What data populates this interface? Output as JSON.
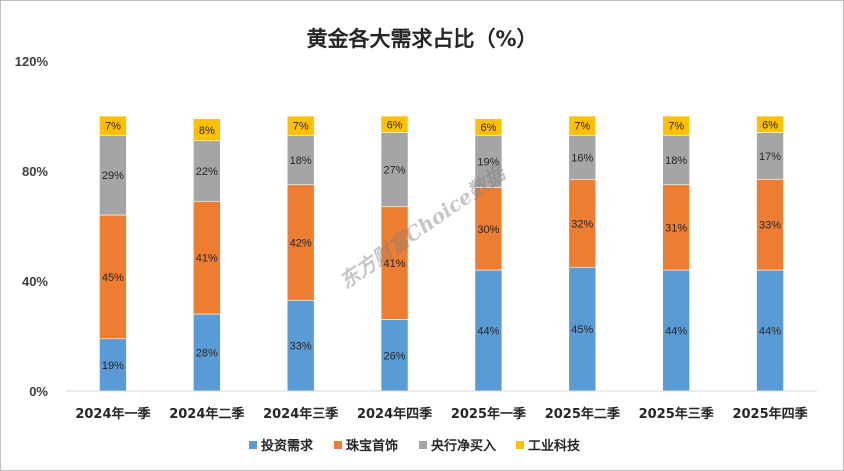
{
  "chart_data": {
    "type": "bar",
    "stacked": true,
    "title": "黄金各大需求占比（%）",
    "xlabel": "",
    "ylabel": "",
    "ylim": [
      0,
      120
    ],
    "yticks": [
      {
        "value": 0,
        "label": "0%"
      },
      {
        "value": 40,
        "label": "40%"
      },
      {
        "value": 80,
        "label": "80%"
      },
      {
        "value": 120,
        "label": "120%"
      }
    ],
    "grid": false,
    "legend_position": "bottom",
    "categories": [
      "2024年一季",
      "2024年二季",
      "2024年三季",
      "2024年四季",
      "2025年一季",
      "2025年二季",
      "2025年三季",
      "2025年四季"
    ],
    "series": [
      {
        "name": "投资需求",
        "color": "#5b9bd5",
        "values": [
          19,
          28,
          33,
          26,
          44,
          45,
          44,
          44
        ],
        "labels": [
          "19%",
          "28%",
          "33%",
          "26%",
          "44%",
          "45%",
          "44%",
          "44%"
        ]
      },
      {
        "name": "珠宝首饰",
        "color": "#ed7d31",
        "values": [
          45,
          41,
          42,
          41,
          30,
          32,
          31,
          33
        ],
        "labels": [
          "45%",
          "41%",
          "42%",
          "41%",
          "30%",
          "32%",
          "31%",
          "33%"
        ]
      },
      {
        "name": "央行净买入",
        "color": "#a5a5a5",
        "values": [
          29,
          22,
          18,
          27,
          19,
          16,
          18,
          17
        ],
        "labels": [
          "29%",
          "22%",
          "18%",
          "27%",
          "19%",
          "16%",
          "18%",
          "17%"
        ]
      },
      {
        "name": "工业科技",
        "color": "#ffc000",
        "values": [
          7,
          8,
          7,
          6,
          6,
          7,
          7,
          6
        ],
        "labels": [
          "7%",
          "8%",
          "7%",
          "6%",
          "6%",
          "7%",
          "7%",
          "6%"
        ]
      }
    ],
    "watermark": "东方财富Choice数据"
  }
}
